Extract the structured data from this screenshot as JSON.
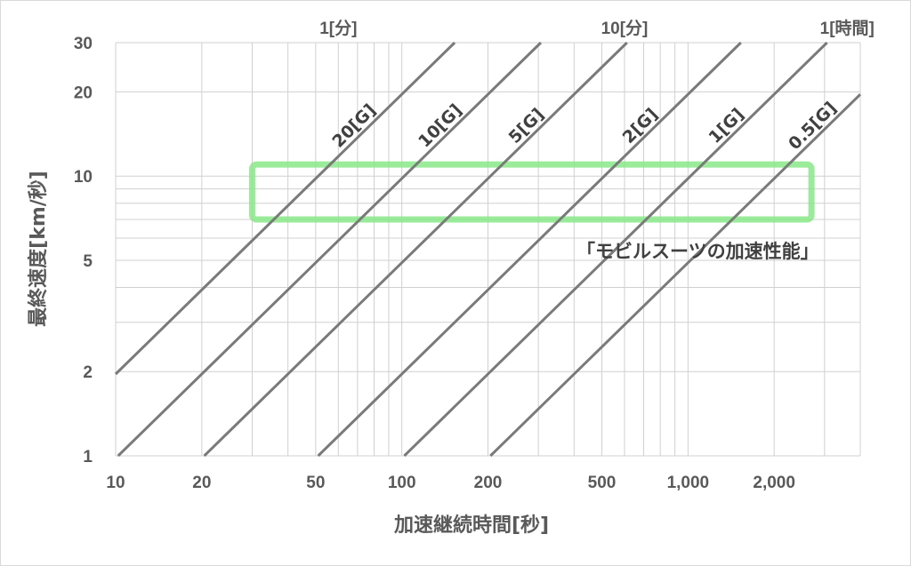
{
  "chart_data": {
    "type": "line",
    "title": "",
    "xlabel": "加速継続時間[秒]",
    "ylabel": "最終速度[km/秒]",
    "x_scale": "log",
    "y_scale": "log",
    "xlim": [
      10,
      4000
    ],
    "ylim": [
      1,
      30
    ],
    "grid": true,
    "x_ticks": [
      {
        "value": 10,
        "label": "10"
      },
      {
        "value": 20,
        "label": "20"
      },
      {
        "value": 50,
        "label": "50"
      },
      {
        "value": 100,
        "label": "100"
      },
      {
        "value": 200,
        "label": "200"
      },
      {
        "value": 500,
        "label": "500"
      },
      {
        "value": 1000,
        "label": "1,000"
      },
      {
        "value": 2000,
        "label": "2,000"
      }
    ],
    "y_ticks": [
      {
        "value": 1,
        "label": "1"
      },
      {
        "value": 2,
        "label": "2"
      },
      {
        "value": 5,
        "label": "5"
      },
      {
        "value": 10,
        "label": "10"
      },
      {
        "value": 20,
        "label": "20"
      },
      {
        "value": 30,
        "label": "30"
      }
    ],
    "top_axis_labels": [
      {
        "value": 60,
        "label": "1[分]"
      },
      {
        "value": 600,
        "label": "10[分]"
      },
      {
        "value": 3600,
        "label": "1[時間]"
      }
    ],
    "series": [
      {
        "name": "20[G]",
        "points": [
          [
            10,
            1.96
          ],
          [
            153,
            30
          ]
        ]
      },
      {
        "name": "10[G]",
        "points": [
          [
            10.2,
            1.0
          ],
          [
            306,
            30
          ]
        ]
      },
      {
        "name": "5[G]",
        "points": [
          [
            20.4,
            1.0
          ],
          [
            612,
            30
          ]
        ]
      },
      {
        "name": "2[G]",
        "points": [
          [
            51,
            1.0
          ],
          [
            1530,
            30
          ]
        ]
      },
      {
        "name": "1[G]",
        "points": [
          [
            102,
            1.0
          ],
          [
            3060,
            30
          ]
        ]
      },
      {
        "name": "0.5[G]",
        "points": [
          [
            204,
            1.0
          ],
          [
            4000,
            19.6
          ]
        ]
      }
    ],
    "highlight_region": {
      "label": "「モビルスーツの加速性能」",
      "x_range": [
        30,
        2700
      ],
      "y_range": [
        7,
        11
      ],
      "color": "#88e888"
    }
  },
  "colors": {
    "series_line": "#7a7a7a",
    "gridline": "#d0d0d0",
    "text": "#595959"
  }
}
